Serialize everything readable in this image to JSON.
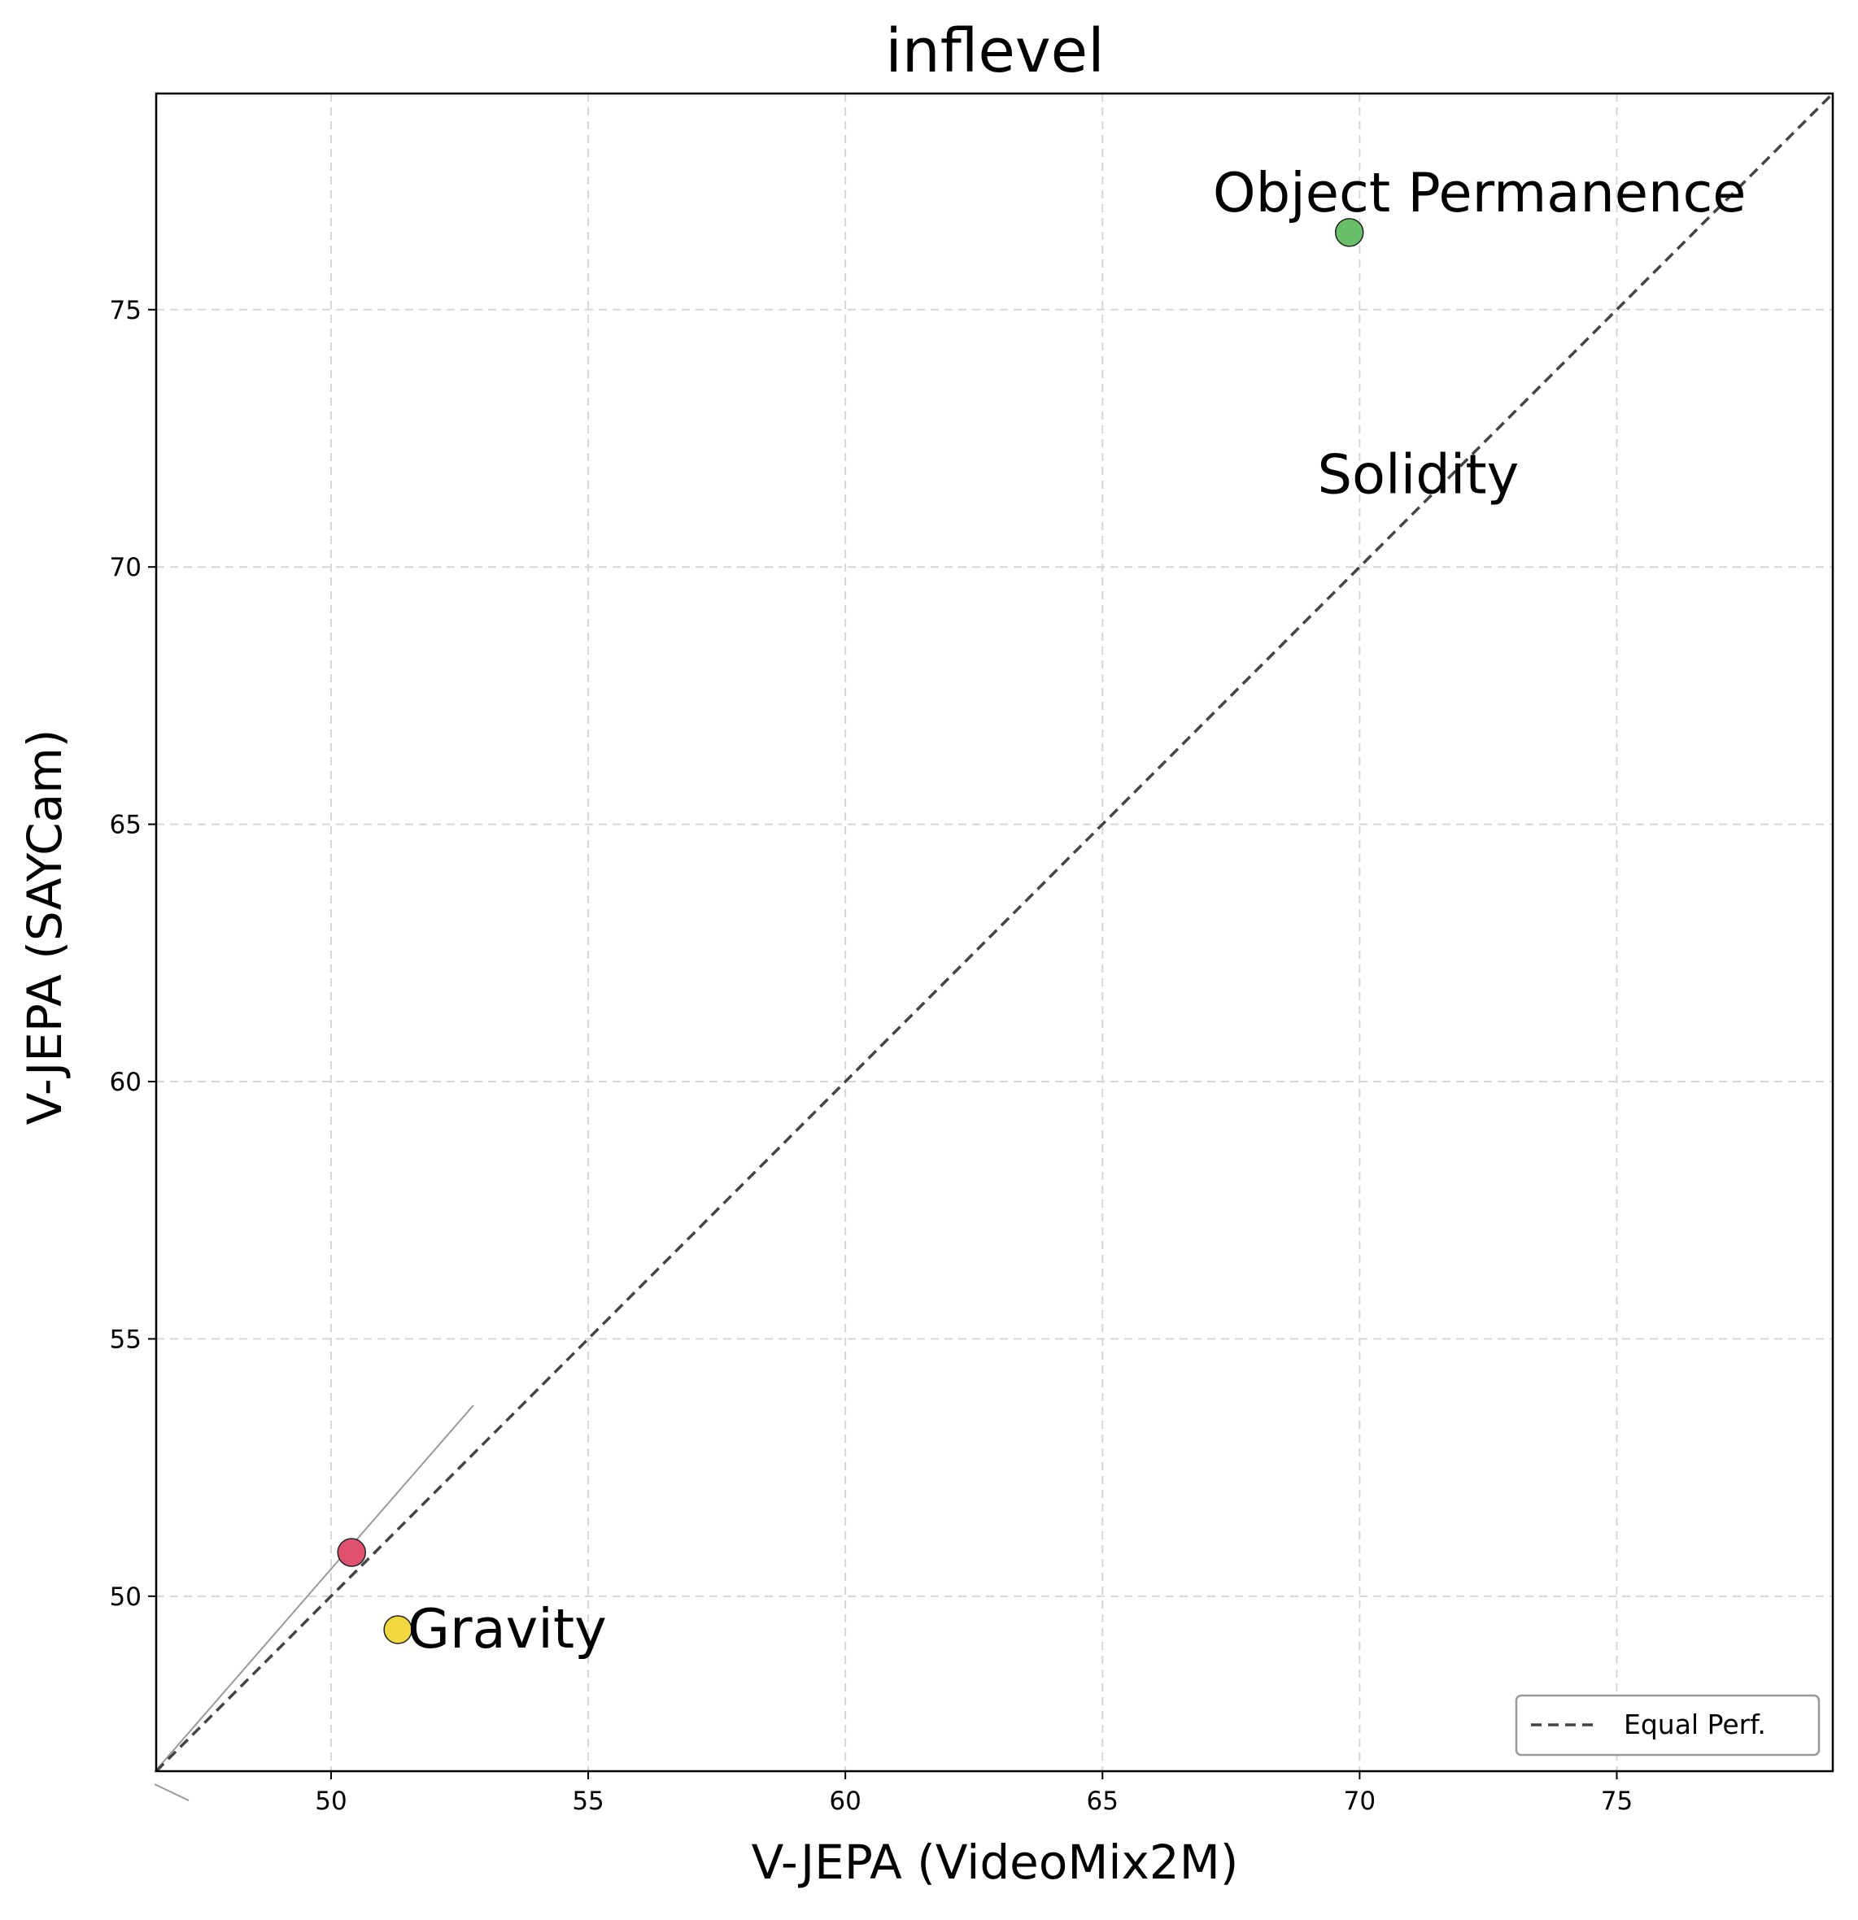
{
  "chart_data": {
    "type": "scatter",
    "title": "inflevel",
    "xlabel": "V-JEPA (VideoMix2M)",
    "ylabel": "V-JEPA (SAYCam)",
    "xlim": [
      46.6,
      79.2
    ],
    "ylim": [
      46.6,
      79.2
    ],
    "x_ticks": [
      50,
      55,
      60,
      65,
      70,
      75
    ],
    "y_ticks": [
      50,
      55,
      60,
      65,
      70,
      75
    ],
    "grid": true,
    "points": [
      {
        "label": "Object Permanence",
        "x": 69.8,
        "y": 76.5,
        "color": "#6abf69"
      },
      {
        "label": "",
        "x": 50.4,
        "y": 50.85,
        "color": "#e0506f"
      },
      {
        "label": "Gravity",
        "x": 51.3,
        "y": 49.35,
        "color": "#f2d840"
      }
    ],
    "annotations": [
      {
        "text": "Solidity",
        "x": 70.0,
        "y": 71.5
      }
    ],
    "reference_line": {
      "name": "Equal Perf.",
      "style": "dashed",
      "color": "#444444"
    },
    "legend": {
      "placement": "lower-right",
      "entries": [
        "Equal Perf."
      ]
    }
  }
}
